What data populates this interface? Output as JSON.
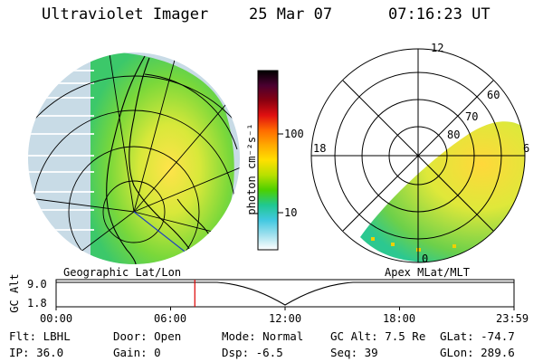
{
  "header": {
    "instrument": "Ultraviolet Imager",
    "date": "25 Mar 07",
    "time": "07:16:23 UT"
  },
  "colorbar": {
    "unit_label": "photon cm⁻²s⁻¹",
    "tick_100": "100",
    "tick_10": "10",
    "stops": [
      "#000000",
      "#4a0030",
      "#8a0010",
      "#e01010",
      "#ff6a00",
      "#ffaa00",
      "#ffe000",
      "#b8e000",
      "#4cd000",
      "#20c890",
      "#40c8e0",
      "#a0e0ee",
      "#ffffff"
    ]
  },
  "left_panel": {
    "caption": "Geographic Lat/Lon"
  },
  "right_panel": {
    "caption": "Apex MLat/MLT",
    "mlt_labels": {
      "top": "12",
      "left": "18",
      "right": "6",
      "bottom": "0"
    },
    "lat_labels": [
      "60",
      "70",
      "80"
    ]
  },
  "timeline": {
    "y_label": "GC Alt",
    "y_ticks": [
      "9.0",
      "1.8"
    ],
    "x_ticks": [
      "00:00",
      "06:00",
      "12:00",
      "18:00",
      "23:59"
    ],
    "current_time_hours": 7.27,
    "marker_color": "#dd0000"
  },
  "status": {
    "flt": "Flt: LBHL",
    "ip": "IP: 36.0",
    "door": "Door: Open",
    "gain": "Gain:  0",
    "mode": "Mode: Normal",
    "dsp": "Dsp:    -6.5",
    "gcalt": "GC Alt: 7.5 Re",
    "seq": "Seq: 39",
    "glat": "GLat: -74.7",
    "glon": "GLon: 289.6"
  }
}
